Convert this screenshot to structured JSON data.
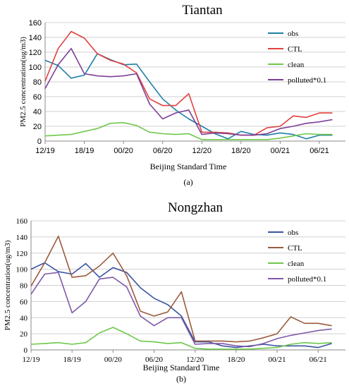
{
  "chart_data": [
    {
      "type": "line",
      "title": "Tiantan",
      "panel_label": "(a)",
      "xlabel": "Beijing Standard Time",
      "ylabel": "PM2.5 concentration(ug/m3)",
      "ylim": [
        0,
        160
      ],
      "yticks": [
        0,
        20,
        40,
        60,
        80,
        100,
        120,
        140,
        160
      ],
      "xlim": [
        0,
        23
      ],
      "xticks": [
        {
          "x": 0,
          "label": "12/19"
        },
        {
          "x": 3,
          "label": "18/19"
        },
        {
          "x": 6,
          "label": "00/20"
        },
        {
          "x": 9,
          "label": "06/20"
        },
        {
          "x": 12,
          "label": "12/20"
        },
        {
          "x": 15,
          "label": "18/20"
        },
        {
          "x": 18,
          "label": "00/21"
        },
        {
          "x": 21,
          "label": "06/21"
        }
      ],
      "grid": "horizontal",
      "legend": "right",
      "series": [
        {
          "name": "obs",
          "color": "#1f7fa8",
          "values": [
            109,
            102,
            85,
            89,
            118,
            110,
            103,
            104,
            80,
            57,
            42,
            30,
            20,
            10,
            3,
            13,
            9,
            8,
            11,
            9,
            3,
            8,
            8
          ]
        },
        {
          "name": "CTL",
          "color": "#e2403f",
          "values": [
            81,
            125,
            148,
            139,
            118,
            109,
            104,
            92,
            57,
            48,
            48,
            64,
            12,
            12,
            11,
            8,
            8,
            18,
            20,
            34,
            32,
            38,
            38
          ]
        },
        {
          "name": "clean",
          "color": "#6dc84a",
          "values": [
            7,
            8,
            9,
            13,
            17,
            24,
            25,
            21,
            12,
            10,
            9,
            10,
            2,
            2,
            2,
            2,
            2,
            2,
            4,
            7,
            10,
            9,
            9
          ]
        },
        {
          "name": "polluted*0.1",
          "color": "#7e3f98",
          "values": [
            71,
            103,
            125,
            91,
            88,
            87,
            88,
            91,
            50,
            30,
            38,
            42,
            9,
            11,
            10,
            8,
            8,
            10,
            17,
            20,
            24,
            26,
            29
          ]
        }
      ]
    },
    {
      "type": "line",
      "title": "Nongzhan",
      "panel_label": "(b)",
      "xlabel": "Beijing Standard Time",
      "ylabel": "PM2.5 concentration(ug/m3)",
      "ylim": [
        0,
        160
      ],
      "yticks": [
        0,
        20,
        40,
        60,
        80,
        100,
        120,
        140,
        160
      ],
      "xlim": [
        0,
        23
      ],
      "xticks": [
        {
          "x": 0,
          "label": "12/19"
        },
        {
          "x": 3,
          "label": "18/19"
        },
        {
          "x": 6,
          "label": "00/20"
        },
        {
          "x": 9,
          "label": "06/20"
        },
        {
          "x": 12,
          "label": "12/20"
        },
        {
          "x": 15,
          "label": "18/20"
        },
        {
          "x": 18,
          "label": "00/21"
        },
        {
          "x": 21,
          "label": "06/21"
        }
      ],
      "grid": "horizontal",
      "legend": "right",
      "series": [
        {
          "name": "obs",
          "color": "#3a53a4",
          "values": [
            100,
            108,
            97,
            94,
            107,
            90,
            102,
            96,
            77,
            64,
            56,
            42,
            10,
            10,
            5,
            3,
            5,
            7,
            5,
            5,
            5,
            3,
            8
          ]
        },
        {
          "name": "CTL",
          "color": "#9b5b3d",
          "values": [
            79,
            108,
            141,
            90,
            92,
            104,
            120,
            92,
            48,
            42,
            47,
            72,
            11,
            11,
            11,
            10,
            11,
            15,
            20,
            41,
            33,
            33,
            30
          ]
        },
        {
          "name": "clean",
          "color": "#6dc84a",
          "values": [
            7,
            8,
            9,
            7,
            9,
            21,
            28,
            20,
            11,
            10,
            8,
            9,
            2,
            1,
            1,
            1,
            1,
            2,
            3,
            7,
            9,
            8,
            9
          ]
        },
        {
          "name": "polluted*0.1",
          "color": "#7e5aa8",
          "values": [
            69,
            94,
            96,
            46,
            60,
            88,
            90,
            78,
            42,
            30,
            40,
            40,
            7,
            8,
            8,
            5,
            4,
            8,
            14,
            18,
            21,
            24,
            26
          ]
        }
      ]
    }
  ]
}
